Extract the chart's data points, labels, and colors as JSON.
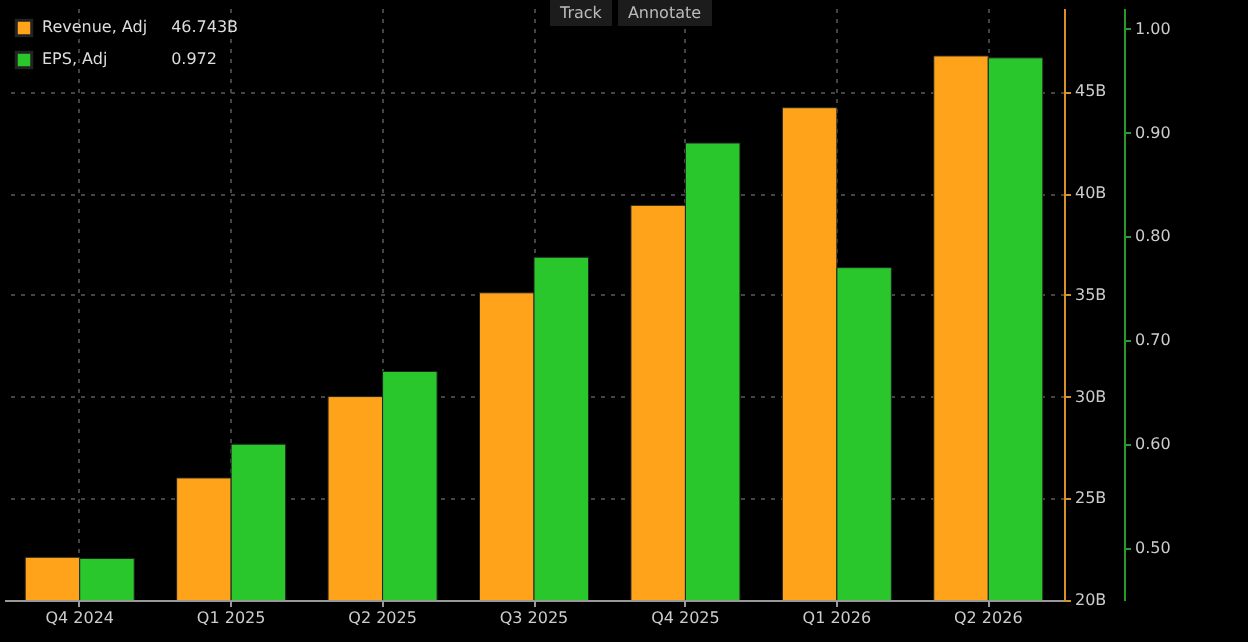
{
  "chart_data": {
    "type": "bar",
    "categories": [
      "Q4 2024",
      "Q1 2025",
      "Q2 2025",
      "Q3 2025",
      "Q4 2025",
      "Q1 2026",
      "Q2 2026"
    ],
    "series": [
      {
        "name": "Revenue, Adj",
        "color": "#ffa31a",
        "values": [
          22.1,
          26.0,
          30.0,
          35.1,
          39.4,
          44.2,
          46.743
        ]
      },
      {
        "name": "EPS, Adj",
        "color": "#29c72b",
        "axis": "y2",
        "values": [
          0.49,
          0.6,
          0.67,
          0.78,
          0.89,
          0.77,
          0.972
        ]
      }
    ],
    "ylim": [
      20,
      49.1
    ],
    "yticks": [
      {
        "value": 20,
        "label": "20B"
      },
      {
        "value": 25,
        "label": "25B"
      },
      {
        "value": 30,
        "label": "30B"
      },
      {
        "value": 35,
        "label": "35B"
      },
      {
        "value": 40,
        "label": "40B"
      },
      {
        "value": 45,
        "label": "45B"
      }
    ],
    "y2lim": [
      0.45,
      1.02
    ],
    "y2ticks": [
      {
        "value": 0.5,
        "label": "0.50"
      },
      {
        "value": 0.6,
        "label": "0.60"
      },
      {
        "value": 0.7,
        "label": "0.70"
      },
      {
        "value": 0.8,
        "label": "0.80"
      },
      {
        "value": 0.9,
        "label": "0.90"
      },
      {
        "value": 1.0,
        "label": "1.00"
      }
    ],
    "annotations": [
      "Track",
      "Annotate",
      "46.743B",
      "0.972"
    ],
    "grid": true,
    "legend": "top left"
  }
}
